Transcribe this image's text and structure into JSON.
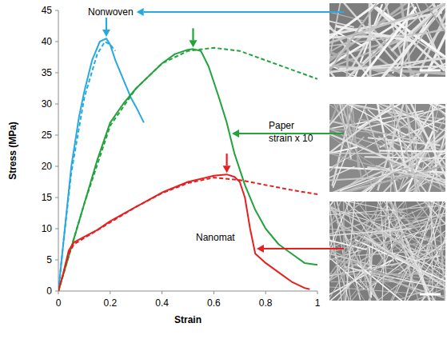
{
  "chart_data": {
    "type": "line",
    "xlabel": "Strain",
    "ylabel": "Stress (MPa)",
    "xlim": [
      0,
      1
    ],
    "ylim": [
      0,
      45
    ],
    "xticks": [
      0,
      0.2,
      0.4,
      0.6,
      0.8,
      1
    ],
    "yticks": [
      0,
      5,
      10,
      15,
      20,
      25,
      30,
      35,
      40,
      45
    ],
    "grid": false,
    "annotations": [
      "strain x 10"
    ],
    "series": [
      {
        "name": "Nonwoven",
        "color": "#29a9e1",
        "line_style": "solid",
        "x": [
          0,
          0.02,
          0.05,
          0.08,
          0.1,
          0.13,
          0.16,
          0.185,
          0.2,
          0.22,
          0.25,
          0.28,
          0.3,
          0.33
        ],
        "values": [
          0,
          8,
          20,
          28,
          32,
          37,
          40,
          40.5,
          39.5,
          37,
          34,
          31,
          29.5,
          27
        ]
      },
      {
        "color": "#29a9e1",
        "line_style": "dashed",
        "x": [
          0,
          0.02,
          0.05,
          0.1,
          0.15,
          0.18,
          0.2,
          0.22
        ],
        "values": [
          0,
          8,
          19,
          31,
          38,
          40,
          39.5,
          38.5
        ]
      },
      {
        "name": "Paper",
        "color": "#22a33c",
        "line_style": "solid",
        "x": [
          0,
          0.05,
          0.1,
          0.15,
          0.2,
          0.25,
          0.3,
          0.35,
          0.4,
          0.45,
          0.5,
          0.52,
          0.55,
          0.58,
          0.62,
          0.65,
          0.68,
          0.72,
          0.76,
          0.8,
          0.85,
          0.9,
          0.95,
          1
        ],
        "values": [
          0,
          7,
          14,
          21,
          27,
          30,
          32.5,
          34.5,
          36.5,
          38,
          38.7,
          38.8,
          38.5,
          36,
          31,
          27,
          22,
          17,
          13,
          10,
          7.5,
          6,
          4.5,
          4.2
        ]
      },
      {
        "color": "#22a33c",
        "line_style": "dashed",
        "x": [
          0,
          0.1,
          0.2,
          0.3,
          0.4,
          0.5,
          0.6,
          0.7,
          0.8,
          0.9,
          1
        ],
        "values": [
          0,
          14,
          26.5,
          32.5,
          36.5,
          38.5,
          39,
          38.5,
          37,
          35.5,
          34
        ]
      },
      {
        "name": "Nanomat",
        "color": "#e5201f",
        "line_style": "solid",
        "x": [
          0,
          0.02,
          0.04,
          0.06,
          0.1,
          0.15,
          0.2,
          0.3,
          0.4,
          0.5,
          0.6,
          0.65,
          0.68,
          0.7,
          0.72,
          0.74,
          0.76,
          0.8,
          0.85,
          0.9,
          0.95,
          0.97
        ],
        "values": [
          0,
          3,
          6.5,
          7.8,
          8.7,
          9.8,
          11.2,
          13.5,
          15.8,
          17.5,
          18.5,
          18.7,
          18.3,
          17.5,
          15,
          10,
          6,
          4.5,
          3,
          1.5,
          0.5,
          0.3
        ]
      },
      {
        "color": "#e5201f",
        "line_style": "dashed",
        "x": [
          0,
          0.04,
          0.06,
          0.1,
          0.2,
          0.3,
          0.4,
          0.5,
          0.6,
          0.7,
          0.8,
          0.9,
          1
        ],
        "values": [
          0,
          6,
          7.5,
          8.5,
          11,
          13.5,
          15.7,
          17.3,
          18.2,
          17.8,
          17,
          16.2,
          15.5
        ]
      }
    ]
  }
}
